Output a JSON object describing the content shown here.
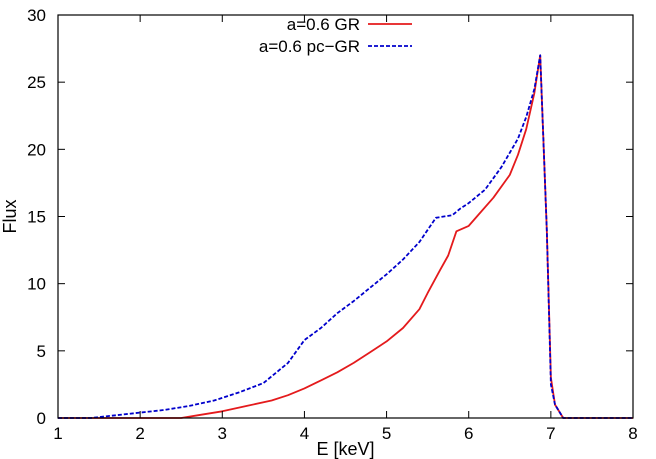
{
  "chart_data": {
    "type": "line",
    "title": "",
    "xlabel": "E [keV]",
    "ylabel": "Flux",
    "xlim": [
      1,
      8
    ],
    "ylim": [
      0,
      30
    ],
    "xticks": [
      "1",
      "2",
      "3",
      "4",
      "5",
      "6",
      "7",
      "8"
    ],
    "yticks": [
      "0",
      "5",
      "10",
      "15",
      "20",
      "25",
      "30"
    ],
    "legend_position": "top-center",
    "grid": false,
    "series": [
      {
        "name": "a=0.6 GR",
        "color": "#e41a1c",
        "style": "solid",
        "x": [
          1.0,
          2.0,
          2.5,
          2.7,
          3.0,
          3.3,
          3.6,
          3.8,
          4.0,
          4.2,
          4.4,
          4.6,
          4.8,
          5.0,
          5.2,
          5.4,
          5.5,
          5.65,
          5.75,
          5.85,
          6.0,
          6.1,
          6.3,
          6.5,
          6.6,
          6.7,
          6.8,
          6.87,
          6.95,
          7.0,
          7.05,
          7.15,
          7.5,
          8.0
        ],
        "y": [
          0.0,
          0.0,
          0.0,
          0.2,
          0.5,
          0.9,
          1.3,
          1.7,
          2.2,
          2.8,
          3.4,
          4.1,
          4.9,
          5.7,
          6.7,
          8.1,
          9.3,
          11.0,
          12.1,
          13.9,
          14.3,
          15.0,
          16.4,
          18.1,
          19.6,
          21.5,
          24.2,
          27.0,
          14.0,
          3.0,
          1.0,
          0.0,
          0.0,
          0.0
        ]
      },
      {
        "name": "a=0.6 pc−GR",
        "color": "#0000cc",
        "style": "dashed",
        "x": [
          1.0,
          1.4,
          1.7,
          2.0,
          2.3,
          2.6,
          2.9,
          3.2,
          3.5,
          3.8,
          4.0,
          4.2,
          4.4,
          4.6,
          4.8,
          5.0,
          5.2,
          5.4,
          5.6,
          5.8,
          5.9,
          6.0,
          6.2,
          6.4,
          6.6,
          6.7,
          6.8,
          6.87,
          6.95,
          7.0,
          7.05,
          7.15,
          7.5,
          8.0
        ],
        "y": [
          0.0,
          0.0,
          0.2,
          0.4,
          0.6,
          0.9,
          1.3,
          1.9,
          2.6,
          4.1,
          5.8,
          6.7,
          7.8,
          8.7,
          9.7,
          10.7,
          11.8,
          13.1,
          14.9,
          15.1,
          15.6,
          16.0,
          17.0,
          18.7,
          20.8,
          22.4,
          24.5,
          27.0,
          14.0,
          2.5,
          1.0,
          0.0,
          0.0,
          0.0
        ]
      }
    ]
  }
}
